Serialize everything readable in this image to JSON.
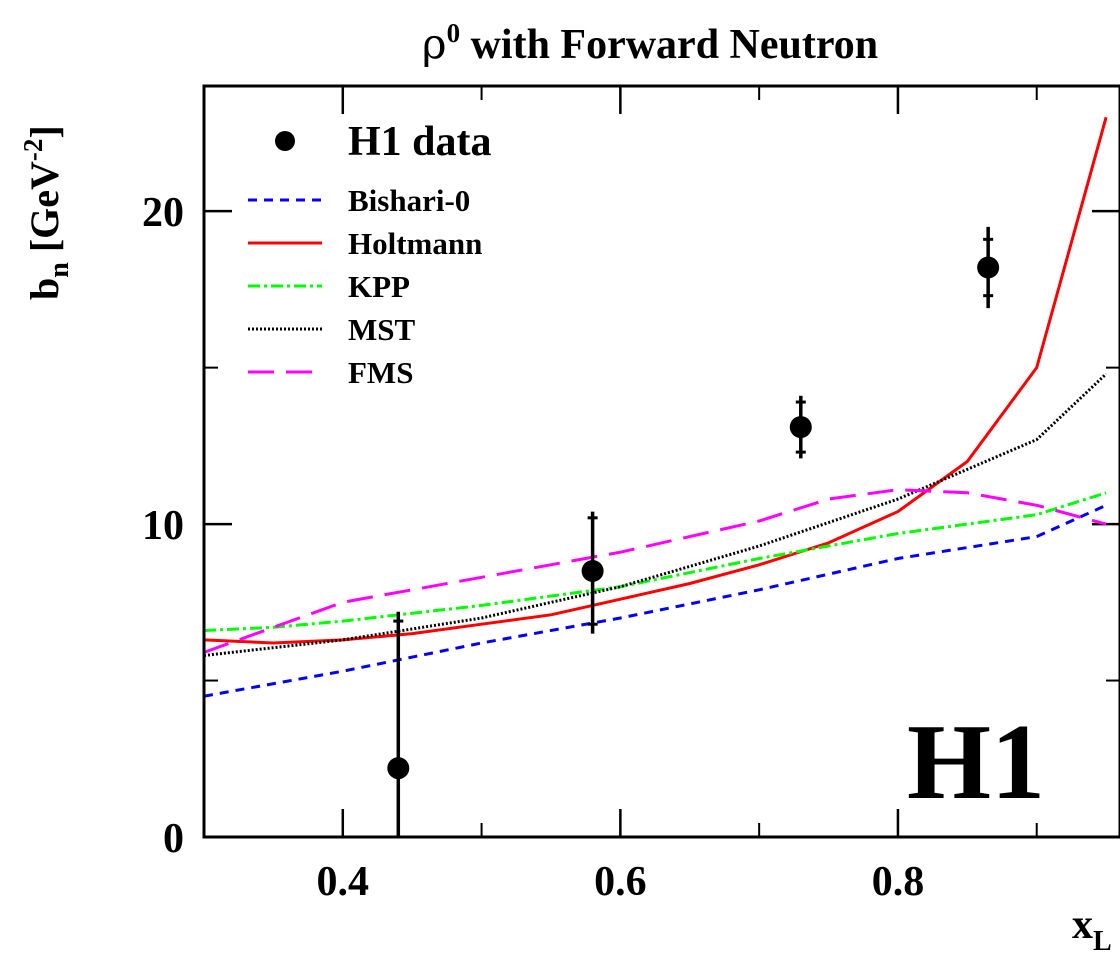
{
  "chart_data": {
    "type": "line",
    "title": "ρ⁰ with Forward Neutron",
    "title_main": "ρ",
    "title_sup": "0",
    "title_rest": " with Forward Neutron",
    "xlabel_main": "x",
    "xlabel_sub": "L",
    "ylabel_b": "b",
    "ylabel_sub": "n",
    "ylabel_unit_open": " [GeV",
    "ylabel_unit_sup": "-2",
    "ylabel_unit_close": "]",
    "xlim": [
      0.3,
      0.96
    ],
    "ylim": [
      0,
      24
    ],
    "xticks": [
      0.4,
      0.6,
      0.8
    ],
    "xtick_labels": [
      "0.4",
      "0.6",
      "0.8"
    ],
    "yticks": [
      0,
      10,
      20
    ],
    "ytick_labels": [
      "0",
      "10",
      "20"
    ],
    "watermark": "H1",
    "legend_placement": "top-left",
    "grid": false,
    "data_series": {
      "name": "H1 data",
      "color": "#000000",
      "points": [
        {
          "x": 0.44,
          "y": 2.2,
          "stat_lo": 2.2,
          "stat_hi": 4.7,
          "tot_lo": 2.2,
          "tot_hi": 5.0
        },
        {
          "x": 0.58,
          "y": 8.5,
          "stat_lo": 1.7,
          "stat_hi": 1.7,
          "tot_lo": 2.0,
          "tot_hi": 1.9
        },
        {
          "x": 0.73,
          "y": 13.1,
          "stat_lo": 0.8,
          "stat_hi": 0.8,
          "tot_lo": 1.0,
          "tot_hi": 1.0
        },
        {
          "x": 0.865,
          "y": 18.2,
          "stat_lo": 0.9,
          "stat_hi": 0.9,
          "tot_lo": 1.3,
          "tot_hi": 1.3
        }
      ]
    },
    "series": [
      {
        "name": "Bishari-0",
        "color": "#0000ff",
        "dash": "9,7",
        "x": [
          0.3,
          0.4,
          0.5,
          0.6,
          0.7,
          0.8,
          0.9,
          0.95
        ],
        "y": [
          4.5,
          5.3,
          6.2,
          7.0,
          7.9,
          8.9,
          9.6,
          10.6
        ]
      },
      {
        "name": "Holtmann",
        "color": "#ff0000",
        "dash": "",
        "x": [
          0.3,
          0.35,
          0.4,
          0.45,
          0.5,
          0.55,
          0.6,
          0.65,
          0.7,
          0.75,
          0.8,
          0.85,
          0.9,
          0.95
        ],
        "y": [
          6.3,
          6.2,
          6.3,
          6.5,
          6.8,
          7.1,
          7.6,
          8.1,
          8.7,
          9.4,
          10.4,
          12.0,
          15.0,
          23.0
        ]
      },
      {
        "name": "KPP",
        "color": "#00ff00",
        "dash": "12,4,3,4",
        "x": [
          0.3,
          0.35,
          0.4,
          0.5,
          0.6,
          0.7,
          0.8,
          0.9,
          0.95
        ],
        "y": [
          6.6,
          6.7,
          6.9,
          7.4,
          8.0,
          8.9,
          9.7,
          10.3,
          11.0
        ]
      },
      {
        "name": "MST",
        "color": "#000000",
        "dash": "2,2",
        "x": [
          0.3,
          0.4,
          0.5,
          0.6,
          0.7,
          0.8,
          0.9,
          0.95
        ],
        "y": [
          5.8,
          6.3,
          7.0,
          8.0,
          9.3,
          10.8,
          12.7,
          14.8
        ]
      },
      {
        "name": "FMS",
        "color": "#ff00ff",
        "dash": "26,12",
        "x": [
          0.3,
          0.4,
          0.5,
          0.6,
          0.7,
          0.75,
          0.8,
          0.85,
          0.9,
          0.95
        ],
        "y": [
          5.9,
          7.5,
          8.3,
          9.1,
          10.1,
          10.8,
          11.1,
          11.0,
          10.6,
          10.0
        ]
      }
    ]
  }
}
